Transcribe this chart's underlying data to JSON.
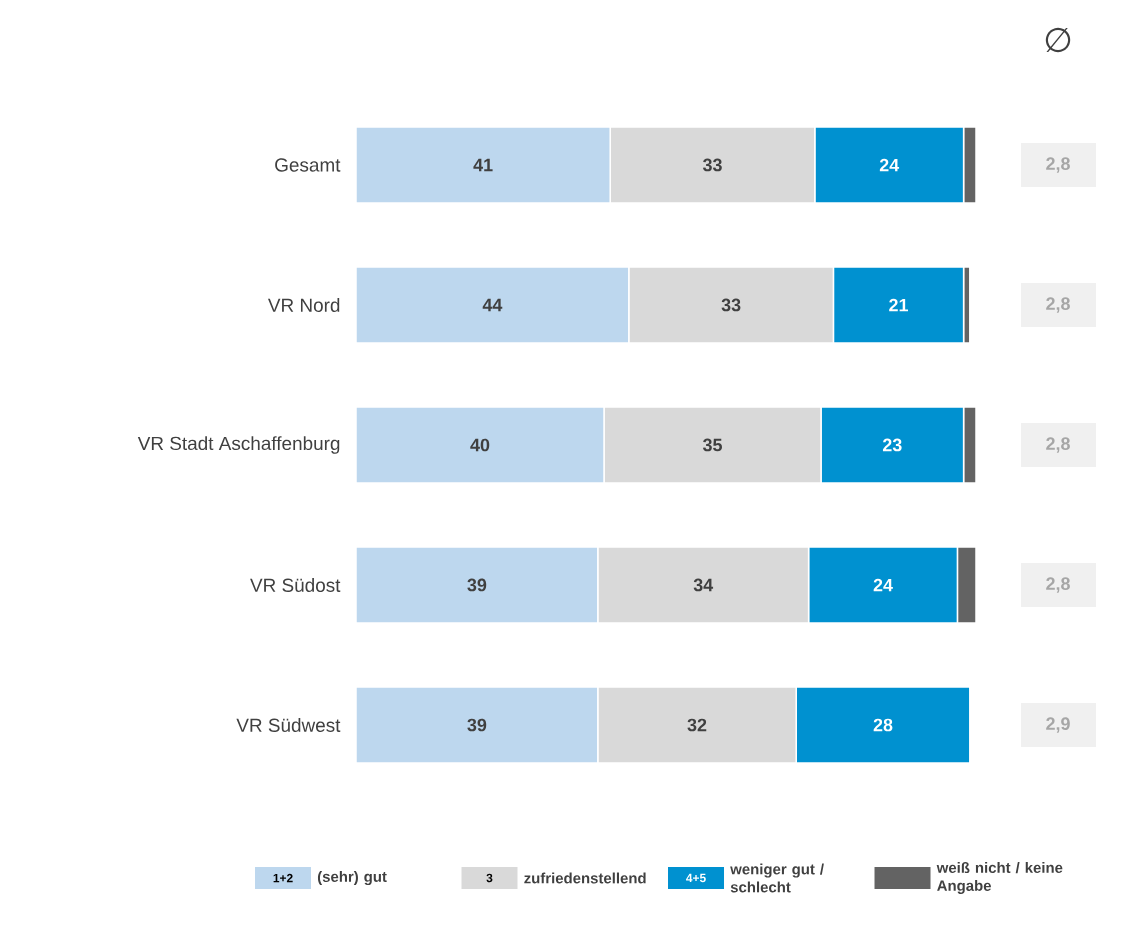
{
  "chart_data": {
    "type": "bar",
    "orientation": "horizontal",
    "stacked": true,
    "xlim": [
      0,
      100
    ],
    "legend": "bottom",
    "categories": [
      "Gesamt",
      "VR Nord",
      "VR Stadt Aschaffenburg",
      "VR Südost",
      "VR Südwest"
    ],
    "series": [
      {
        "name": "(sehr) gut",
        "color": "#bdd7ee",
        "values": [
          41,
          44,
          40,
          39,
          39
        ],
        "value_labels": [
          "41",
          "44",
          "40",
          "39",
          "39"
        ]
      },
      {
        "name": "zufriedenstellend",
        "color": "#d9d9d9",
        "values": [
          33,
          33,
          35,
          34,
          32
        ],
        "value_labels": [
          "33",
          "33",
          "35",
          "34",
          "32"
        ]
      },
      {
        "name": "weniger gut / schlecht",
        "color": "#0091d0",
        "values": [
          24,
          21,
          23,
          24,
          28
        ],
        "value_labels": [
          "24",
          "21",
          "23",
          "24",
          "28"
        ]
      },
      {
        "name": "weiß nicht / keine Angabe",
        "color": "#636363",
        "values": [
          2,
          1,
          2,
          3,
          null
        ],
        "value_labels": [
          null,
          null,
          null,
          null,
          null
        ]
      }
    ],
    "annotations": [
      "∅",
      "2,8",
      "2,8",
      "2,8",
      "2,8",
      "2,9",
      "1+2",
      "3",
      "4+5"
    ]
  }
}
